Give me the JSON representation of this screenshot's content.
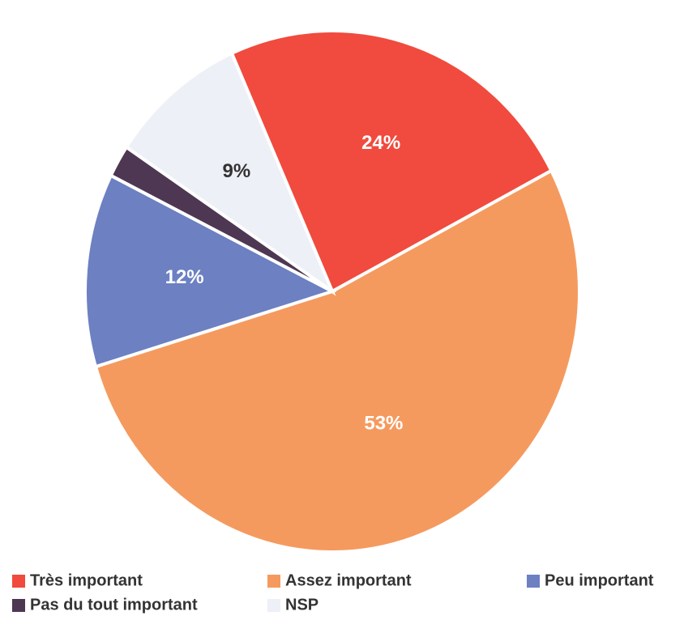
{
  "chart_data": {
    "type": "pie",
    "categories": [
      "Très important",
      "Assez important",
      "Peu important",
      "Pas du tout important",
      "NSP"
    ],
    "values": [
      24,
      53,
      12,
      2,
      9
    ],
    "value_labels": [
      "24%",
      "53%",
      "12%",
      null,
      "9%"
    ],
    "colors": [
      "#f04b3e",
      "#f59a5e",
      "#6c80c2",
      "#4d3752",
      "#eef0f7"
    ],
    "label_colors": [
      "#ffffff",
      "#ffffff",
      "#ffffff",
      "#ffffff",
      "#333333"
    ],
    "start_angle": -24,
    "legend": "bottom"
  }
}
